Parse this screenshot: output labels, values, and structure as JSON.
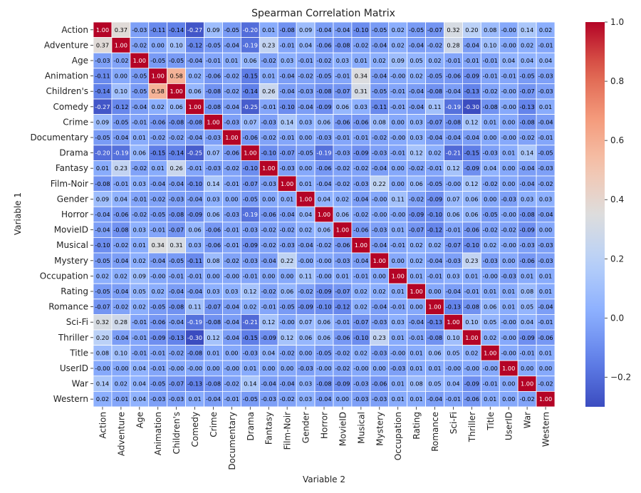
{
  "chart_data": {
    "type": "heatmap",
    "title": "Spearman Correlation Matrix",
    "xlabel": "Variable 2",
    "ylabel": "Variable 1",
    "labels": [
      "Action",
      "Adventure",
      "Age",
      "Animation",
      "Children's",
      "Comedy",
      "Crime",
      "Documentary",
      "Drama",
      "Fantasy",
      "Film-Noir",
      "Gender",
      "Horror",
      "MovieID",
      "Musical",
      "Mystery",
      "Occupation",
      "Rating",
      "Romance",
      "Sci-Fi",
      "Thriller",
      "Title",
      "UserID",
      "War",
      "Western"
    ],
    "matrix": [
      [
        "1.00",
        "0.37",
        "-0.03",
        "-0.11",
        "-0.14",
        "-0.27",
        "0.09",
        "-0.05",
        "-0.20",
        "0.01",
        "-0.08",
        "0.09",
        "-0.04",
        "-0.04",
        "-0.10",
        "-0.05",
        "0.02",
        "-0.05",
        "-0.07",
        "0.32",
        "0.20",
        "0.08",
        "-0.00",
        "0.14",
        "0.02"
      ],
      [
        "0.37",
        "1.00",
        "-0.02",
        "0.00",
        "0.10",
        "-0.12",
        "-0.05",
        "-0.04",
        "-0.19",
        "0.23",
        "-0.01",
        "0.04",
        "-0.06",
        "-0.08",
        "-0.02",
        "-0.04",
        "0.02",
        "-0.04",
        "-0.02",
        "0.28",
        "-0.04",
        "0.10",
        "-0.00",
        "0.02",
        "-0.01"
      ],
      [
        "-0.03",
        "-0.02",
        "1.00",
        "-0.05",
        "-0.05",
        "-0.04",
        "-0.01",
        "0.01",
        "0.06",
        "-0.02",
        "0.03",
        "-0.01",
        "-0.02",
        "0.03",
        "0.01",
        "0.02",
        "0.09",
        "0.05",
        "0.02",
        "-0.01",
        "-0.01",
        "-0.01",
        "0.04",
        "0.04",
        "0.04"
      ],
      [
        "-0.11",
        "0.00",
        "-0.05",
        "1.00",
        "0.58",
        "0.02",
        "-0.06",
        "-0.02",
        "-0.15",
        "0.01",
        "-0.04",
        "-0.02",
        "-0.05",
        "-0.01",
        "0.34",
        "-0.04",
        "-0.00",
        "0.02",
        "-0.05",
        "-0.06",
        "-0.09",
        "-0.01",
        "-0.01",
        "-0.05",
        "-0.03"
      ],
      [
        "-0.14",
        "0.10",
        "-0.05",
        "0.58",
        "1.00",
        "0.06",
        "-0.08",
        "-0.02",
        "-0.14",
        "0.26",
        "-0.04",
        "-0.03",
        "-0.08",
        "-0.07",
        "0.31",
        "-0.05",
        "-0.01",
        "-0.04",
        "-0.08",
        "-0.04",
        "-0.13",
        "-0.02",
        "-0.00",
        "-0.07",
        "-0.03"
      ],
      [
        "-0.27",
        "-0.12",
        "-0.04",
        "0.02",
        "0.06",
        "1.00",
        "-0.08",
        "-0.04",
        "-0.25",
        "-0.01",
        "-0.10",
        "-0.04",
        "-0.09",
        "0.06",
        "0.03",
        "-0.11",
        "-0.01",
        "-0.04",
        "0.11",
        "-0.19",
        "-0.30",
        "-0.08",
        "-0.00",
        "-0.13",
        "0.01"
      ],
      [
        "0.09",
        "-0.05",
        "-0.01",
        "-0.06",
        "-0.08",
        "-0.08",
        "1.00",
        "-0.03",
        "0.07",
        "-0.03",
        "0.14",
        "0.03",
        "0.06",
        "-0.06",
        "-0.06",
        "0.08",
        "0.00",
        "0.03",
        "-0.07",
        "-0.08",
        "0.12",
        "0.01",
        "0.00",
        "-0.08",
        "-0.04"
      ],
      [
        "-0.05",
        "-0.04",
        "0.01",
        "-0.02",
        "-0.02",
        "-0.04",
        "-0.03",
        "1.00",
        "-0.06",
        "-0.02",
        "-0.01",
        "0.00",
        "-0.03",
        "-0.01",
        "-0.01",
        "-0.02",
        "-0.00",
        "0.03",
        "-0.04",
        "-0.04",
        "-0.04",
        "0.00",
        "-0.00",
        "-0.02",
        "-0.01"
      ],
      [
        "-0.20",
        "-0.19",
        "0.06",
        "-0.15",
        "-0.14",
        "-0.25",
        "0.07",
        "-0.06",
        "1.00",
        "-0.10",
        "-0.07",
        "-0.05",
        "-0.19",
        "-0.03",
        "-0.09",
        "-0.03",
        "-0.01",
        "0.12",
        "0.02",
        "-0.21",
        "-0.15",
        "-0.03",
        "0.01",
        "0.14",
        "-0.05"
      ],
      [
        "0.01",
        "0.23",
        "-0.02",
        "0.01",
        "0.26",
        "-0.01",
        "-0.03",
        "-0.02",
        "-0.10",
        "1.00",
        "-0.03",
        "0.00",
        "-0.06",
        "-0.02",
        "-0.02",
        "-0.04",
        "0.00",
        "-0.02",
        "-0.01",
        "0.12",
        "-0.09",
        "0.04",
        "0.00",
        "-0.04",
        "-0.03"
      ],
      [
        "-0.08",
        "-0.01",
        "0.03",
        "-0.04",
        "-0.04",
        "-0.10",
        "0.14",
        "-0.01",
        "-0.07",
        "-0.03",
        "1.00",
        "0.01",
        "-0.04",
        "-0.02",
        "-0.03",
        "0.22",
        "0.00",
        "0.06",
        "-0.05",
        "-0.00",
        "0.12",
        "-0.02",
        "0.00",
        "-0.04",
        "-0.02"
      ],
      [
        "0.09",
        "0.04",
        "-0.01",
        "-0.02",
        "-0.03",
        "-0.04",
        "0.03",
        "0.00",
        "-0.05",
        "0.00",
        "0.01",
        "1.00",
        "0.04",
        "0.02",
        "-0.04",
        "-0.00",
        "0.11",
        "-0.02",
        "-0.09",
        "0.07",
        "0.06",
        "0.00",
        "-0.03",
        "0.03",
        "0.03"
      ],
      [
        "-0.04",
        "-0.06",
        "-0.02",
        "-0.05",
        "-0.08",
        "-0.09",
        "0.06",
        "-0.03",
        "-0.19",
        "-0.06",
        "-0.04",
        "0.04",
        "1.00",
        "0.06",
        "-0.02",
        "-0.00",
        "-0.00",
        "-0.09",
        "-0.10",
        "0.06",
        "0.06",
        "-0.05",
        "-0.00",
        "-0.08",
        "-0.04"
      ],
      [
        "-0.04",
        "-0.08",
        "0.03",
        "-0.01",
        "-0.07",
        "0.06",
        "-0.06",
        "-0.01",
        "-0.03",
        "-0.02",
        "-0.02",
        "0.02",
        "0.06",
        "1.00",
        "-0.06",
        "-0.03",
        "0.01",
        "-0.07",
        "-0.12",
        "-0.01",
        "-0.06",
        "-0.02",
        "-0.02",
        "-0.09",
        "0.00"
      ],
      [
        "-0.10",
        "-0.02",
        "0.01",
        "0.34",
        "0.31",
        "0.03",
        "-0.06",
        "-0.01",
        "-0.09",
        "-0.02",
        "-0.03",
        "-0.04",
        "-0.02",
        "-0.06",
        "1.00",
        "-0.04",
        "-0.01",
        "0.02",
        "0.02",
        "-0.07",
        "-0.10",
        "0.02",
        "-0.00",
        "-0.03",
        "-0.03"
      ],
      [
        "-0.05",
        "-0.04",
        "0.02",
        "-0.04",
        "-0.05",
        "-0.11",
        "0.08",
        "-0.02",
        "-0.03",
        "-0.04",
        "0.22",
        "-0.00",
        "-0.00",
        "-0.03",
        "-0.04",
        "1.00",
        "0.00",
        "0.02",
        "-0.04",
        "-0.03",
        "0.23",
        "-0.03",
        "0.00",
        "-0.06",
        "-0.03"
      ],
      [
        "0.02",
        "0.02",
        "0.09",
        "-0.00",
        "-0.01",
        "-0.01",
        "0.00",
        "-0.00",
        "-0.01",
        "0.00",
        "0.00",
        "0.11",
        "-0.00",
        "0.01",
        "-0.01",
        "0.00",
        "1.00",
        "0.01",
        "-0.01",
        "0.03",
        "0.01",
        "-0.00",
        "-0.03",
        "0.01",
        "0.01"
      ],
      [
        "-0.05",
        "-0.04",
        "0.05",
        "0.02",
        "-0.04",
        "-0.04",
        "0.03",
        "0.03",
        "0.12",
        "-0.02",
        "0.06",
        "-0.02",
        "-0.09",
        "-0.07",
        "0.02",
        "0.02",
        "0.01",
        "1.00",
        "0.00",
        "-0.04",
        "-0.01",
        "0.01",
        "0.01",
        "0.08",
        "0.01"
      ],
      [
        "-0.07",
        "-0.02",
        "0.02",
        "-0.05",
        "-0.08",
        "0.11",
        "-0.07",
        "-0.04",
        "0.02",
        "-0.01",
        "-0.05",
        "-0.09",
        "-0.10",
        "-0.12",
        "0.02",
        "-0.04",
        "-0.01",
        "0.00",
        "1.00",
        "-0.13",
        "-0.08",
        "0.06",
        "0.01",
        "0.05",
        "-0.04"
      ],
      [
        "0.32",
        "0.28",
        "-0.01",
        "-0.06",
        "-0.04",
        "-0.19",
        "-0.08",
        "-0.04",
        "-0.21",
        "0.12",
        "-0.00",
        "0.07",
        "0.06",
        "-0.01",
        "-0.07",
        "-0.03",
        "0.03",
        "-0.04",
        "-0.13",
        "1.00",
        "0.10",
        "0.05",
        "-0.00",
        "0.04",
        "-0.01"
      ],
      [
        "0.20",
        "-0.04",
        "-0.01",
        "-0.09",
        "-0.13",
        "-0.30",
        "0.12",
        "-0.04",
        "-0.15",
        "-0.09",
        "0.12",
        "0.06",
        "0.06",
        "-0.06",
        "-0.10",
        "0.23",
        "0.01",
        "-0.01",
        "-0.08",
        "0.10",
        "1.00",
        "0.02",
        "-0.00",
        "-0.09",
        "-0.06"
      ],
      [
        "0.08",
        "0.10",
        "-0.01",
        "-0.01",
        "-0.02",
        "-0.08",
        "0.01",
        "0.00",
        "-0.03",
        "0.04",
        "-0.02",
        "0.00",
        "-0.05",
        "-0.02",
        "0.02",
        "-0.03",
        "-0.00",
        "0.01",
        "0.06",
        "0.05",
        "0.02",
        "1.00",
        "-0.00",
        "-0.01",
        "0.01"
      ],
      [
        "-0.00",
        "-0.00",
        "0.04",
        "-0.01",
        "-0.00",
        "-0.00",
        "0.00",
        "-0.00",
        "0.01",
        "0.00",
        "0.00",
        "-0.03",
        "-0.00",
        "-0.02",
        "-0.00",
        "0.00",
        "-0.03",
        "0.01",
        "0.01",
        "-0.00",
        "-0.00",
        "-0.00",
        "1.00",
        "0.00",
        "0.00"
      ],
      [
        "0.14",
        "0.02",
        "0.04",
        "-0.05",
        "-0.07",
        "-0.13",
        "-0.08",
        "-0.02",
        "0.14",
        "-0.04",
        "-0.04",
        "0.03",
        "-0.08",
        "-0.09",
        "-0.03",
        "-0.06",
        "0.01",
        "0.08",
        "0.05",
        "0.04",
        "-0.09",
        "-0.01",
        "0.00",
        "1.00",
        "-0.02"
      ],
      [
        "0.02",
        "-0.01",
        "0.04",
        "-0.03",
        "-0.03",
        "0.01",
        "-0.04",
        "-0.01",
        "-0.05",
        "-0.03",
        "-0.02",
        "0.03",
        "-0.04",
        "0.00",
        "-0.03",
        "-0.03",
        "0.01",
        "0.01",
        "-0.04",
        "-0.01",
        "-0.06",
        "0.01",
        "0.00",
        "-0.02",
        "1.00"
      ]
    ],
    "vmin": -0.3,
    "vmax": 1.0,
    "colormap": "coolwarm",
    "colorbar_ticks": [
      "1.0",
      "0.8",
      "0.6",
      "0.4",
      "0.2",
      "0.0",
      "−0.2"
    ],
    "colorbar_tick_values": [
      1.0,
      0.8,
      0.6,
      0.4,
      0.2,
      0.0,
      -0.2
    ]
  },
  "colors": {
    "text": "#222222",
    "cell_border": "#ffffff"
  }
}
